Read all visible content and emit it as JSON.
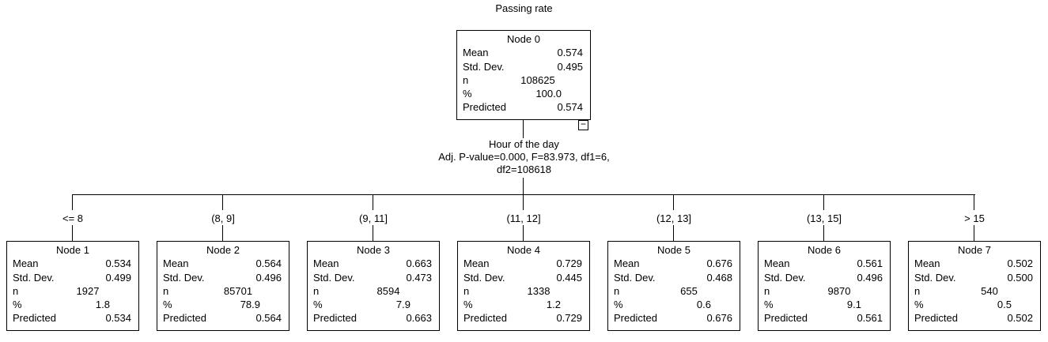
{
  "title": "Passing rate",
  "root": {
    "name": "Node 0",
    "rows": [
      {
        "label": "Mean",
        "value": "0.574"
      },
      {
        "label": "Std. Dev.",
        "value": "0.495"
      },
      {
        "label": "n",
        "value": "108625"
      },
      {
        "label": "%",
        "value": "100.0"
      },
      {
        "label": "Predicted",
        "value": "0.574"
      }
    ],
    "collapse_symbol": "−"
  },
  "split": {
    "variable": "Hour of the day",
    "stats_line1": "Adj. P-value=0.000, F=83.973, df1=6,",
    "stats_line2": "df2=108618"
  },
  "children": [
    {
      "range": "<= 8",
      "name": "Node 1",
      "rows": [
        {
          "label": "Mean",
          "value": "0.534"
        },
        {
          "label": "Std. Dev.",
          "value": "0.499"
        },
        {
          "label": "n",
          "value": "1927"
        },
        {
          "label": "%",
          "value": "1.8"
        },
        {
          "label": "Predicted",
          "value": "0.534"
        }
      ]
    },
    {
      "range": "(8, 9]",
      "name": "Node 2",
      "rows": [
        {
          "label": "Mean",
          "value": "0.564"
        },
        {
          "label": "Std. Dev.",
          "value": "0.496"
        },
        {
          "label": "n",
          "value": "85701"
        },
        {
          "label": "%",
          "value": "78.9"
        },
        {
          "label": "Predicted",
          "value": "0.564"
        }
      ]
    },
    {
      "range": "(9, 11]",
      "name": "Node 3",
      "rows": [
        {
          "label": "Mean",
          "value": "0.663"
        },
        {
          "label": "Std. Dev.",
          "value": "0.473"
        },
        {
          "label": "n",
          "value": "8594"
        },
        {
          "label": "%",
          "value": "7.9"
        },
        {
          "label": "Predicted",
          "value": "0.663"
        }
      ]
    },
    {
      "range": "(11, 12]",
      "name": "Node 4",
      "rows": [
        {
          "label": "Mean",
          "value": "0.729"
        },
        {
          "label": "Std. Dev.",
          "value": "0.445"
        },
        {
          "label": "n",
          "value": "1338"
        },
        {
          "label": "%",
          "value": "1.2"
        },
        {
          "label": "Predicted",
          "value": "0.729"
        }
      ]
    },
    {
      "range": "(12, 13]",
      "name": "Node 5",
      "rows": [
        {
          "label": "Mean",
          "value": "0.676"
        },
        {
          "label": "Std. Dev.",
          "value": "0.468"
        },
        {
          "label": "n",
          "value": "655"
        },
        {
          "label": "%",
          "value": "0.6"
        },
        {
          "label": "Predicted",
          "value": "0.676"
        }
      ]
    },
    {
      "range": "(13, 15]",
      "name": "Node 6",
      "rows": [
        {
          "label": "Mean",
          "value": "0.561"
        },
        {
          "label": "Std. Dev.",
          "value": "0.496"
        },
        {
          "label": "n",
          "value": "9870"
        },
        {
          "label": "%",
          "value": "9.1"
        },
        {
          "label": "Predicted",
          "value": "0.561"
        }
      ]
    },
    {
      "range": "> 15",
      "name": "Node 7",
      "rows": [
        {
          "label": "Mean",
          "value": "0.502"
        },
        {
          "label": "Std. Dev.",
          "value": "0.500"
        },
        {
          "label": "n",
          "value": "540"
        },
        {
          "label": "%",
          "value": "0.5"
        },
        {
          "label": "Predicted",
          "value": "0.502"
        }
      ]
    }
  ]
}
